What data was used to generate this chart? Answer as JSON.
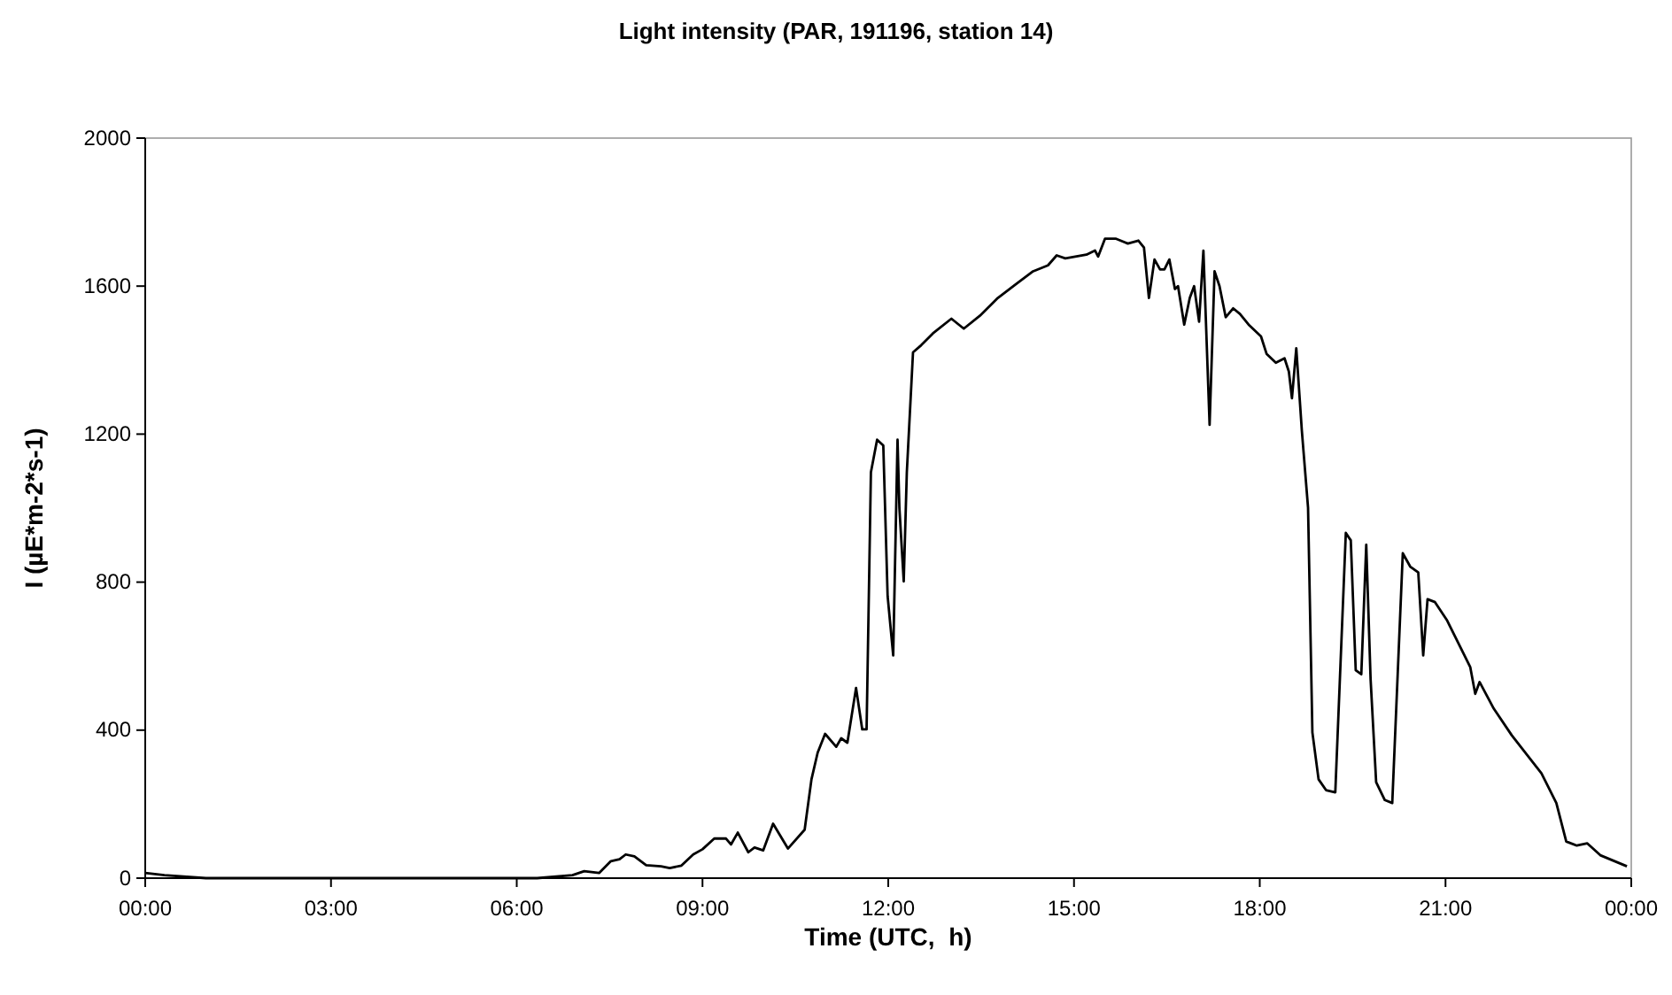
{
  "chart_data": {
    "type": "line",
    "title": "Light intensity (PAR, 191196, station 14)",
    "xlabel": "Time (UTC,  h)",
    "ylabel": "I (µE*m-2*s-1)",
    "xlim": [
      0,
      24
    ],
    "xticks": [
      {
        "value": 0,
        "label": "00:00"
      },
      {
        "value": 3,
        "label": "03:00"
      },
      {
        "value": 6,
        "label": "06:00"
      },
      {
        "value": 9,
        "label": "09:00"
      },
      {
        "value": 12,
        "label": "12:00"
      },
      {
        "value": 15,
        "label": "15:00"
      },
      {
        "value": 18,
        "label": "18:00"
      },
      {
        "value": 21,
        "label": "21:00"
      },
      {
        "value": 24,
        "label": "00:00"
      }
    ],
    "ylim": [
      0,
      2000
    ],
    "yticks": [
      0,
      400,
      800,
      1200,
      1600,
      2000
    ],
    "grid": false,
    "marker": "none",
    "line_style": "solid",
    "series": [
      {
        "color": "#000000",
        "x": [
          0,
          0.31,
          0.98,
          6.33,
          6.9,
          7.09,
          7.33,
          7.52,
          7.66,
          7.76,
          7.9,
          8.09,
          8.33,
          8.47,
          8.66,
          8.85,
          9.0,
          9.19,
          9.38,
          9.46,
          9.57,
          9.74,
          9.84,
          9.98,
          10.14,
          10.38,
          10.65,
          10.76,
          10.86,
          10.98,
          11.16,
          11.24,
          11.34,
          11.48,
          11.58,
          11.65,
          11.72,
          11.82,
          11.92,
          11.99,
          12.08,
          12.15,
          12.18,
          12.25,
          12.3,
          12.4,
          12.53,
          12.72,
          13.02,
          13.22,
          13.48,
          13.77,
          14.06,
          14.34,
          14.58,
          14.72,
          14.86,
          15.2,
          15.34,
          15.39,
          15.5,
          15.68,
          15.87,
          16.04,
          16.13,
          16.21,
          16.3,
          16.39,
          16.46,
          16.54,
          16.63,
          16.68,
          16.78,
          16.87,
          16.94,
          17.02,
          17.09,
          17.19,
          17.27,
          17.35,
          17.45,
          17.57,
          17.68,
          17.82,
          18.02,
          18.11,
          18.26,
          18.4,
          18.47,
          18.52,
          18.59,
          18.68,
          18.78,
          18.85,
          18.95,
          19.07,
          19.22,
          19.39,
          19.47,
          19.55,
          19.64,
          19.72,
          19.79,
          19.88,
          20.02,
          20.14,
          20.31,
          20.43,
          20.56,
          20.64,
          20.71,
          20.83,
          21.02,
          21.21,
          21.4,
          21.48,
          21.55,
          21.78,
          22.07,
          22.55,
          22.79,
          22.95,
          23.12,
          23.29,
          23.5,
          23.93
        ],
        "values": [
          14,
          8,
          0,
          0,
          8,
          19,
          14,
          46,
          51,
          64,
          59,
          35,
          32,
          27,
          34,
          64,
          78,
          107,
          107,
          91,
          123,
          70,
          83,
          75,
          147,
          80,
          131,
          267,
          339,
          390,
          355,
          378,
          366,
          514,
          402,
          402,
          1097,
          1185,
          1169,
          762,
          602,
          1185,
          1001,
          802,
          1097,
          1421,
          1440,
          1472,
          1512,
          1485,
          1520,
          1568,
          1605,
          1640,
          1656,
          1683,
          1675,
          1685,
          1696,
          1680,
          1728,
          1728,
          1715,
          1723,
          1704,
          1568,
          1672,
          1645,
          1645,
          1672,
          1592,
          1600,
          1496,
          1568,
          1600,
          1504,
          1696,
          1225,
          1640,
          1600,
          1516,
          1540,
          1525,
          1496,
          1464,
          1417,
          1393,
          1405,
          1369,
          1297,
          1432,
          1209,
          1001,
          394,
          267,
          238,
          232,
          933,
          913,
          562,
          551,
          901,
          538,
          259,
          211,
          203,
          878,
          842,
          826,
          602,
          754,
          746,
          698,
          634,
          570,
          498,
          530,
          458,
          386,
          283,
          203,
          99,
          88,
          94,
          62,
          32
        ]
      }
    ]
  }
}
